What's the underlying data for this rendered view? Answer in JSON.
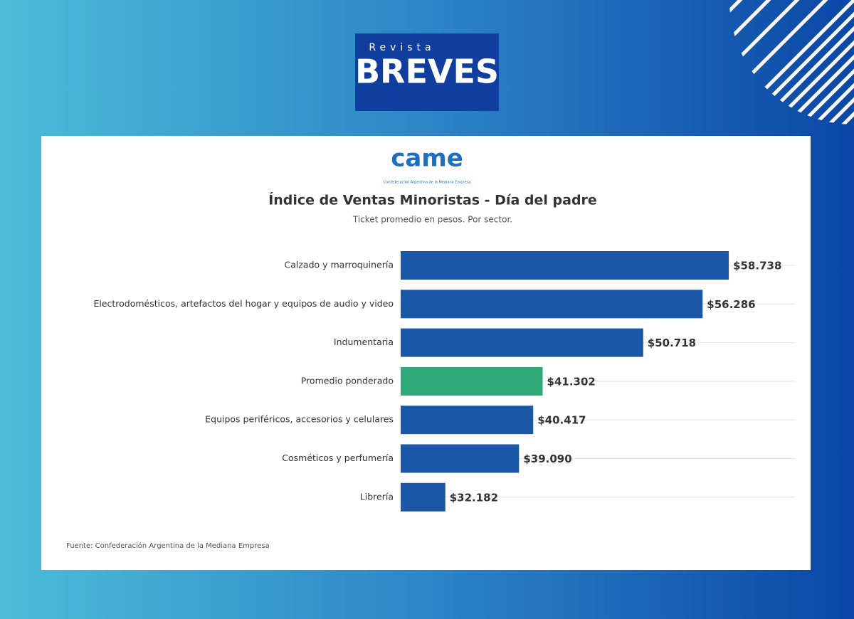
{
  "header": {
    "kicker": "Revista",
    "brand": "BREVES"
  },
  "logo": {
    "text": "came",
    "caption": "Confederación Argentina de la Mediana Empresa"
  },
  "chart_data": {
    "type": "barh",
    "title": "Índice de Ventas Minoristas - Día del padre",
    "subtitle": "Ticket promedio en pesos. Por sector.",
    "categories": [
      "Calzado y marroquinería",
      "Electrodomésticos, artefactos del hogar y equipos de audio y video",
      "Indumentaria",
      "Promedio ponderado",
      "Equipos periféricos, accesorios y celulares",
      "Cosméticos y perfumería",
      "Librería"
    ],
    "values": [
      58738,
      56286,
      50718,
      41302,
      40417,
      39090,
      32182
    ],
    "value_labels": [
      "$58.738",
      "$56.286",
      "$50.718",
      "$41.302",
      "$40.417",
      "$39.090",
      "$32.182"
    ],
    "colors": [
      "#1a57a6",
      "#1a57a6",
      "#1a57a6",
      "#2ea977",
      "#1a57a6",
      "#1a57a6",
      "#1a57a6"
    ],
    "xlim": [
      28000,
      65000
    ],
    "source": "Fuente: Confederación Argentina de la Mediana Empresa"
  }
}
